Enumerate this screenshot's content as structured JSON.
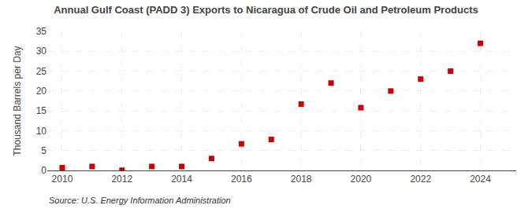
{
  "chart_data": {
    "type": "scatter",
    "title": "Annual Gulf Coast (PADD 3) Exports to Nicaragua of Crude Oil and Petroleum Products",
    "y_label": "Thousand Barrels per Day",
    "annotations": [
      "Source: U.S. Energy Information Administration"
    ],
    "x": [
      2010,
      2011,
      2012,
      2013,
      2014,
      2015,
      2016,
      2017,
      2018,
      2019,
      2020,
      2021,
      2022,
      2023,
      2024
    ],
    "values": [
      0.7,
      1.0,
      0.05,
      1.0,
      1.0,
      3.0,
      6.7,
      7.8,
      16.7,
      22.0,
      15.8,
      20.0,
      23.0,
      25.0,
      32.0
    ],
    "color": "#cc0000",
    "marker": "square",
    "xlim": [
      2009.5,
      2025.2
    ],
    "ylim": [
      0,
      35
    ],
    "xticks": [
      2010,
      2012,
      2014,
      2016,
      2018,
      2020,
      2022,
      2024
    ],
    "yticks": [
      0,
      5,
      10,
      15,
      20,
      25,
      30,
      35
    ],
    "grid": true
  }
}
